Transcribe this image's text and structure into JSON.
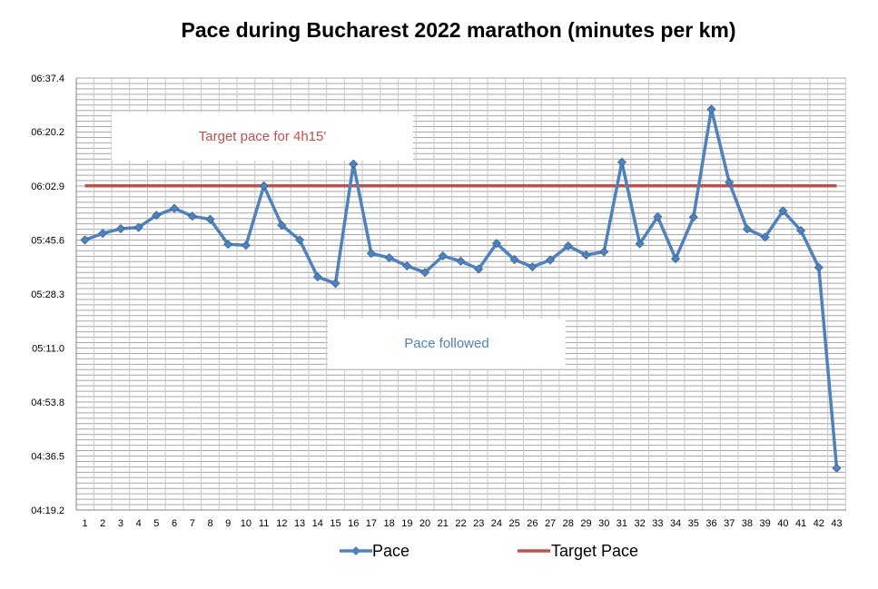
{
  "chart_data": {
    "type": "line",
    "title": "Pace during Bucharest 2022 marathon (minutes per km)",
    "xlabel": "",
    "ylabel": "",
    "categories": [
      "1",
      "2",
      "3",
      "4",
      "5",
      "6",
      "7",
      "8",
      "9",
      "10",
      "11",
      "12",
      "13",
      "14",
      "15",
      "16",
      "17",
      "18",
      "19",
      "20",
      "21",
      "22",
      "23",
      "24",
      "25",
      "26",
      "27",
      "28",
      "29",
      "30",
      "31",
      "32",
      "33",
      "34",
      "35",
      "36",
      "37",
      "38",
      "39",
      "40",
      "41",
      "42",
      "43"
    ],
    "y_unit": "seconds",
    "ylim": [
      259.2,
      397.4
    ],
    "ytick_values": [
      259.2,
      276.5,
      293.8,
      311.0,
      328.3,
      345.6,
      362.9,
      380.2,
      397.4
    ],
    "ytick_labels": [
      "04:19.2",
      "04:36.5",
      "04:53.8",
      "05:11.0",
      "05:28.3",
      "05:45.6",
      "06:02.9",
      "06:20.2",
      "06:37.4"
    ],
    "grid": true,
    "legend_position": "bottom",
    "series": [
      {
        "name": "Pace",
        "color": "#4f81bd",
        "marker": "diamond",
        "values": [
          345.6,
          347.7,
          349.2,
          349.6,
          353.5,
          355.7,
          353.2,
          352.2,
          344.2,
          343.9,
          362.9,
          350.3,
          345.6,
          333.8,
          331.7,
          369.9,
          341.3,
          339.9,
          337.3,
          335.2,
          340.5,
          338.8,
          336.3,
          344.5,
          339.3,
          337.0,
          339.2,
          343.7,
          340.8,
          341.8,
          370.5,
          344.4,
          353.0,
          339.6,
          352.9,
          387.4,
          364.0,
          349.1,
          346.5,
          354.9,
          348.6,
          336.8,
          272.6
        ]
      },
      {
        "name": "Target Pace",
        "color": "#c0504d",
        "marker": "none",
        "values": [
          362.9,
          362.9,
          362.9,
          362.9,
          362.9,
          362.9,
          362.9,
          362.9,
          362.9,
          362.9,
          362.9,
          362.9,
          362.9,
          362.9,
          362.9,
          362.9,
          362.9,
          362.9,
          362.9,
          362.9,
          362.9,
          362.9,
          362.9,
          362.9,
          362.9,
          362.9,
          362.9,
          362.9,
          362.9,
          362.9,
          362.9,
          362.9,
          362.9,
          362.9,
          362.9,
          362.9,
          362.9,
          362.9,
          362.9,
          362.9,
          362.9,
          362.9,
          362.9
        ]
      }
    ],
    "annotations": [
      {
        "text": "Target pace for 4h15'",
        "color": "#c0504d"
      },
      {
        "text": "Pace followed",
        "color": "#4f81bd"
      }
    ]
  }
}
